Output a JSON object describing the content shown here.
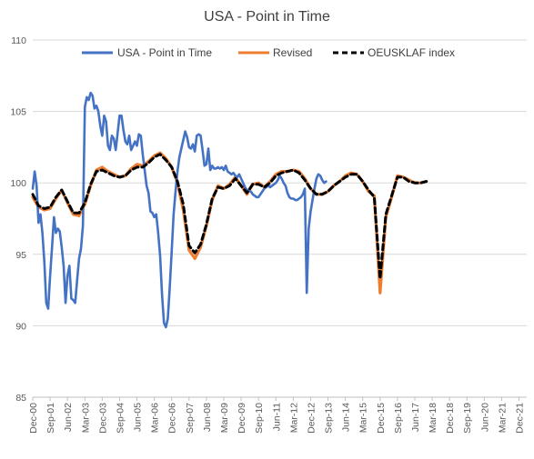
{
  "chart_data": {
    "type": "line",
    "title": "USA - Point in Time",
    "xlabel": "",
    "ylabel": "",
    "ylim": [
      85,
      110
    ],
    "ytick_step": 5,
    "grid": "horizontal",
    "legend_position": "top",
    "x_tick_labels": [
      "Dec-00",
      "Sep-01",
      "Jun-02",
      "Mar-03",
      "Dec-03",
      "Sep-04",
      "Jun-05",
      "Mar-06",
      "Dec-06",
      "Sep-07",
      "Jun-08",
      "Mar-09",
      "Dec-09",
      "Sep-10",
      "Jun-11",
      "Mar-12",
      "Dec-12",
      "Sep-13",
      "Jun-14",
      "Mar-15",
      "Dec-15",
      "Sep-16",
      "Jun-17",
      "Mar-18",
      "Dec-18",
      "Sep-19",
      "Jun-20",
      "Mar-21",
      "Dec-21"
    ],
    "x_start": "Dec-00",
    "x_end": "Apr-22",
    "series": [
      {
        "name": "USA - Point in Time",
        "color": "#4472c4",
        "dash": "solid",
        "points": [
          [
            "Dec-00",
            99.6
          ],
          [
            "Jan-01",
            100.8
          ],
          [
            "Feb-01",
            99.8
          ],
          [
            "Mar-01",
            97.2
          ],
          [
            "Apr-01",
            97.8
          ],
          [
            "May-01",
            96.5
          ],
          [
            "Jun-01",
            94.5
          ],
          [
            "Jul-01",
            91.6
          ],
          [
            "Aug-01",
            91.2
          ],
          [
            "Sep-01",
            93.5
          ],
          [
            "Oct-01",
            95.5
          ],
          [
            "Nov-01",
            97.6
          ],
          [
            "Dec-01",
            96.5
          ],
          [
            "Jan-02",
            96.8
          ],
          [
            "Feb-02",
            96.6
          ],
          [
            "Mar-02",
            95.5
          ],
          [
            "Apr-02",
            94.2
          ],
          [
            "May-02",
            91.6
          ],
          [
            "Jun-02",
            93.5
          ],
          [
            "Jul-02",
            94.2
          ],
          [
            "Aug-02",
            91.9
          ],
          [
            "Sep-02",
            91.8
          ],
          [
            "Oct-02",
            91.6
          ],
          [
            "Nov-02",
            93.2
          ],
          [
            "Dec-02",
            94.7
          ],
          [
            "Jan-03",
            95.4
          ],
          [
            "Feb-03",
            97.0
          ],
          [
            "Mar-03",
            105.3
          ],
          [
            "Apr-03",
            106.0
          ],
          [
            "May-03",
            105.8
          ],
          [
            "Jun-03",
            106.3
          ],
          [
            "Jul-03",
            106.1
          ],
          [
            "Aug-03",
            105.2
          ],
          [
            "Sep-03",
            105.4
          ],
          [
            "Oct-03",
            105.0
          ],
          [
            "Nov-03",
            104.0
          ],
          [
            "Dec-03",
            103.3
          ],
          [
            "Jan-04",
            104.7
          ],
          [
            "Feb-04",
            104.3
          ],
          [
            "Mar-04",
            102.6
          ],
          [
            "Apr-04",
            102.3
          ],
          [
            "May-04",
            103.3
          ],
          [
            "Jun-04",
            103.1
          ],
          [
            "Jul-04",
            102.3
          ],
          [
            "Aug-04",
            103.5
          ],
          [
            "Sep-04",
            104.7
          ],
          [
            "Oct-04",
            104.7
          ],
          [
            "Nov-04",
            103.7
          ],
          [
            "Dec-04",
            102.9
          ],
          [
            "Jan-05",
            102.7
          ],
          [
            "Feb-05",
            103.3
          ],
          [
            "Mar-05",
            102.3
          ],
          [
            "Apr-05",
            102.6
          ],
          [
            "May-05",
            102.9
          ],
          [
            "Jun-05",
            102.6
          ],
          [
            "Jul-05",
            103.4
          ],
          [
            "Aug-05",
            103.3
          ],
          [
            "Sep-05",
            102.0
          ],
          [
            "Oct-05",
            100.9
          ],
          [
            "Nov-05",
            99.8
          ],
          [
            "Dec-05",
            99.3
          ],
          [
            "Jan-06",
            98.0
          ],
          [
            "Feb-06",
            97.9
          ],
          [
            "Mar-06",
            97.6
          ],
          [
            "Apr-06",
            97.8
          ],
          [
            "May-06",
            96.5
          ],
          [
            "Jun-06",
            94.9
          ],
          [
            "Jul-06",
            92.2
          ],
          [
            "Aug-06",
            90.2
          ],
          [
            "Sep-06",
            89.9
          ],
          [
            "Oct-06",
            90.5
          ],
          [
            "Nov-06",
            92.7
          ],
          [
            "Dec-06",
            95.2
          ],
          [
            "Jan-07",
            97.8
          ],
          [
            "Feb-07",
            99.4
          ],
          [
            "Mar-07",
            100.8
          ],
          [
            "Apr-07",
            101.8
          ],
          [
            "May-07",
            102.4
          ],
          [
            "Jun-07",
            103.0
          ],
          [
            "Jul-07",
            103.6
          ],
          [
            "Aug-07",
            103.2
          ],
          [
            "Sep-07",
            102.5
          ],
          [
            "Oct-07",
            102.4
          ],
          [
            "Nov-07",
            102.7
          ],
          [
            "Dec-07",
            102.2
          ],
          [
            "Jan-08",
            103.3
          ],
          [
            "Feb-08",
            103.4
          ],
          [
            "Mar-08",
            103.3
          ],
          [
            "Apr-08",
            102.3
          ],
          [
            "May-08",
            101.2
          ],
          [
            "Jun-08",
            101.3
          ],
          [
            "Jul-08",
            102.4
          ],
          [
            "Aug-08",
            100.9
          ],
          [
            "Sep-08",
            101.2
          ],
          [
            "Oct-08",
            101.0
          ],
          [
            "Nov-08",
            101.0
          ],
          [
            "Dec-08",
            101.1
          ],
          [
            "Jan-09",
            101.0
          ],
          [
            "Feb-09",
            101.1
          ],
          [
            "Mar-09",
            100.9
          ],
          [
            "Apr-09",
            101.2
          ],
          [
            "May-09",
            100.8
          ],
          [
            "Jun-09",
            100.7
          ],
          [
            "Jul-09",
            100.6
          ],
          [
            "Aug-09",
            100.7
          ],
          [
            "Sep-09",
            100.5
          ],
          [
            "Oct-09",
            100.4
          ],
          [
            "Nov-09",
            100.6
          ],
          [
            "Dec-09",
            100.3
          ],
          [
            "Jan-10",
            100.0
          ],
          [
            "Feb-10",
            99.7
          ],
          [
            "Mar-10",
            99.5
          ],
          [
            "Apr-10",
            99.5
          ],
          [
            "May-10",
            99.4
          ],
          [
            "Jun-10",
            99.2
          ],
          [
            "Jul-10",
            99.1
          ],
          [
            "Aug-10",
            99.0
          ],
          [
            "Sep-10",
            99.0
          ],
          [
            "Oct-10",
            99.2
          ],
          [
            "Nov-10",
            99.4
          ],
          [
            "Dec-10",
            99.6
          ],
          [
            "Jan-11",
            99.7
          ],
          [
            "Feb-11",
            99.8
          ],
          [
            "Mar-11",
            99.7
          ],
          [
            "Apr-11",
            99.8
          ],
          [
            "May-11",
            99.9
          ],
          [
            "Jun-11",
            100.0
          ],
          [
            "Jul-11",
            100.2
          ],
          [
            "Aug-11",
            100.5
          ],
          [
            "Sep-11",
            100.3
          ],
          [
            "Oct-11",
            100.0
          ],
          [
            "Nov-11",
            99.8
          ],
          [
            "Dec-11",
            99.3
          ],
          [
            "Jan-12",
            99.0
          ],
          [
            "Feb-12",
            98.9
          ],
          [
            "Mar-12",
            98.9
          ],
          [
            "Apr-12",
            98.8
          ],
          [
            "May-12",
            98.8
          ],
          [
            "Jun-12",
            98.9
          ],
          [
            "Jul-12",
            99.0
          ],
          [
            "Aug-12",
            99.2
          ],
          [
            "Sep-12",
            99.6
          ],
          [
            "Oct-12",
            92.3
          ],
          [
            "Nov-12",
            96.8
          ],
          [
            "Dec-12",
            98.0
          ],
          [
            "Jan-13",
            98.8
          ],
          [
            "Feb-13",
            99.6
          ],
          [
            "Mar-13",
            100.3
          ],
          [
            "Apr-13",
            100.6
          ],
          [
            "May-13",
            100.5
          ],
          [
            "Jun-13",
            100.2
          ],
          [
            "Jul-13",
            100.0
          ],
          [
            "Aug-13",
            100.1
          ]
        ]
      },
      {
        "name": "Revised",
        "color": "#ed7d31",
        "dash": "solid",
        "points": [
          [
            "Dec-00",
            99.0
          ],
          [
            "Mar-01",
            98.3
          ],
          [
            "Jun-01",
            98.1
          ],
          [
            "Sep-01",
            98.2
          ],
          [
            "Dec-01",
            98.9
          ],
          [
            "Mar-02",
            99.5
          ],
          [
            "Jun-02",
            98.6
          ],
          [
            "Sep-02",
            97.8
          ],
          [
            "Dec-02",
            97.7
          ],
          [
            "Mar-03",
            98.5
          ],
          [
            "Jun-03",
            99.8
          ],
          [
            "Sep-03",
            100.9
          ],
          [
            "Dec-03",
            101.1
          ],
          [
            "Mar-04",
            100.8
          ],
          [
            "Jun-04",
            100.6
          ],
          [
            "Sep-04",
            100.4
          ],
          [
            "Dec-04",
            100.5
          ],
          [
            "Mar-05",
            101.0
          ],
          [
            "Jun-05",
            101.3
          ],
          [
            "Sep-05",
            101.2
          ],
          [
            "Dec-05",
            101.5
          ],
          [
            "Mar-06",
            101.9
          ],
          [
            "Jun-06",
            102.1
          ],
          [
            "Sep-06",
            101.7
          ],
          [
            "Dec-06",
            101.1
          ],
          [
            "Mar-07",
            100.0
          ],
          [
            "Jun-07",
            98.1
          ],
          [
            "Sep-07",
            95.3
          ],
          [
            "Dec-07",
            94.7
          ],
          [
            "Mar-08",
            95.5
          ],
          [
            "Jun-08",
            97.0
          ],
          [
            "Sep-08",
            98.8
          ],
          [
            "Dec-08",
            99.8
          ],
          [
            "Mar-09",
            99.6
          ],
          [
            "Jun-09",
            99.9
          ],
          [
            "Sep-09",
            100.4
          ],
          [
            "Dec-09",
            99.8
          ],
          [
            "Mar-10",
            99.2
          ],
          [
            "Jun-10",
            99.9
          ],
          [
            "Sep-10",
            100.0
          ],
          [
            "Dec-10",
            99.7
          ],
          [
            "Mar-11",
            100.1
          ],
          [
            "Jun-11",
            100.6
          ],
          [
            "Sep-11",
            100.8
          ],
          [
            "Dec-11",
            100.8
          ],
          [
            "Mar-12",
            100.9
          ],
          [
            "Jun-12",
            100.8
          ],
          [
            "Sep-12",
            100.3
          ],
          [
            "Dec-12",
            99.6
          ],
          [
            "Mar-13",
            99.2
          ],
          [
            "Jun-13",
            99.2
          ],
          [
            "Sep-13",
            99.4
          ],
          [
            "Dec-13",
            99.8
          ],
          [
            "Mar-14",
            100.1
          ],
          [
            "Jun-14",
            100.5
          ],
          [
            "Sep-14",
            100.7
          ],
          [
            "Dec-14",
            100.6
          ],
          [
            "Mar-15",
            100.1
          ],
          [
            "Jun-15",
            99.4
          ],
          [
            "Sep-15",
            99.1
          ],
          [
            "Dec-15",
            92.3
          ],
          [
            "Mar-16",
            97.6
          ],
          [
            "Jun-16",
            99.0
          ],
          [
            "Sep-16",
            100.5
          ],
          [
            "Dec-16",
            100.4
          ],
          [
            "Mar-17",
            100.2
          ],
          [
            "Jun-17",
            100.0
          ],
          [
            "Sep-17",
            100.0
          ],
          [
            "Dec-17",
            100.1
          ]
        ]
      },
      {
        "name": "OEUSKLAF index",
        "color": "#000000",
        "dash": "dashed",
        "points": [
          [
            "Dec-00",
            99.2
          ],
          [
            "Mar-01",
            98.4
          ],
          [
            "Jun-01",
            98.2
          ],
          [
            "Sep-01",
            98.3
          ],
          [
            "Dec-01",
            99.0
          ],
          [
            "Mar-02",
            99.5
          ],
          [
            "Jun-02",
            98.7
          ],
          [
            "Sep-02",
            97.9
          ],
          [
            "Dec-02",
            97.9
          ],
          [
            "Mar-03",
            98.6
          ],
          [
            "Jun-03",
            99.9
          ],
          [
            "Sep-03",
            100.8
          ],
          [
            "Dec-03",
            100.9
          ],
          [
            "Mar-04",
            100.7
          ],
          [
            "Jun-04",
            100.5
          ],
          [
            "Sep-04",
            100.4
          ],
          [
            "Dec-04",
            100.5
          ],
          [
            "Mar-05",
            100.9
          ],
          [
            "Jun-05",
            101.1
          ],
          [
            "Sep-05",
            101.1
          ],
          [
            "Dec-05",
            101.4
          ],
          [
            "Mar-06",
            101.8
          ],
          [
            "Jun-06",
            102.0
          ],
          [
            "Sep-06",
            101.6
          ],
          [
            "Dec-06",
            101.1
          ],
          [
            "Mar-07",
            100.1
          ],
          [
            "Jun-07",
            98.5
          ],
          [
            "Sep-07",
            95.6
          ],
          [
            "Dec-07",
            95.1
          ],
          [
            "Mar-08",
            95.7
          ],
          [
            "Jun-08",
            97.1
          ],
          [
            "Sep-08",
            98.9
          ],
          [
            "Dec-08",
            99.7
          ],
          [
            "Mar-09",
            99.6
          ],
          [
            "Jun-09",
            99.8
          ],
          [
            "Sep-09",
            100.3
          ],
          [
            "Dec-09",
            99.8
          ],
          [
            "Mar-10",
            99.3
          ],
          [
            "Jun-10",
            99.9
          ],
          [
            "Sep-10",
            99.9
          ],
          [
            "Dec-10",
            99.7
          ],
          [
            "Mar-11",
            100.0
          ],
          [
            "Jun-11",
            100.5
          ],
          [
            "Sep-11",
            100.7
          ],
          [
            "Dec-11",
            100.8
          ],
          [
            "Mar-12",
            100.9
          ],
          [
            "Jun-12",
            100.7
          ],
          [
            "Sep-12",
            100.2
          ],
          [
            "Dec-12",
            99.6
          ],
          [
            "Mar-13",
            99.2
          ],
          [
            "Jun-13",
            99.2
          ],
          [
            "Sep-13",
            99.4
          ],
          [
            "Dec-13",
            99.8
          ],
          [
            "Mar-14",
            100.1
          ],
          [
            "Jun-14",
            100.4
          ],
          [
            "Sep-14",
            100.6
          ],
          [
            "Dec-14",
            100.6
          ],
          [
            "Mar-15",
            100.1
          ],
          [
            "Jun-15",
            99.5
          ],
          [
            "Sep-15",
            99.0
          ],
          [
            "Dec-15",
            93.3
          ],
          [
            "Mar-16",
            97.8
          ],
          [
            "Jun-16",
            99.1
          ],
          [
            "Sep-16",
            100.4
          ],
          [
            "Dec-16",
            100.4
          ],
          [
            "Mar-17",
            100.1
          ],
          [
            "Jun-17",
            100.0
          ],
          [
            "Sep-17",
            100.0
          ],
          [
            "Dec-17",
            100.1
          ]
        ]
      }
    ]
  }
}
